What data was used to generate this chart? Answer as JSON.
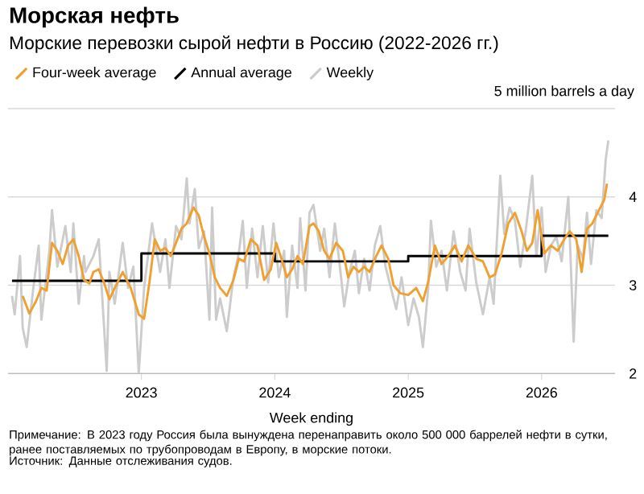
{
  "chart_data": {
    "type": "line",
    "title": "Морская нефть",
    "subtitle": "Морские перевозки сырой нефти в Россию (2022-2026 гг.)",
    "xlabel": "Week ending",
    "xlim": [
      2022.0,
      2026.55
    ],
    "xticks": [
      2023,
      2024,
      2025,
      2026
    ],
    "ylim": [
      2,
      5
    ],
    "yticks": [
      2,
      3,
      4,
      {
        "value": 5,
        "label": "5 million barrels a day"
      }
    ],
    "grid": "y",
    "legend": "top left",
    "series": [
      {
        "name": "Four-week average",
        "type": "line",
        "color": "#f0a030",
        "x": [
          2022.11,
          2022.16,
          2022.21,
          2022.25,
          2022.29,
          2022.33,
          2022.37,
          2022.41,
          2022.45,
          2022.49,
          2022.53,
          2022.57,
          2022.61,
          2022.64,
          2022.68,
          2022.72,
          2022.76,
          2022.8,
          2022.86,
          2022.92,
          2022.98,
          2023.02,
          2023.06,
          2023.1,
          2023.14,
          2023.18,
          2023.22,
          2023.26,
          2023.3,
          2023.34,
          2023.39,
          2023.43,
          2023.47,
          2023.51,
          2023.55,
          2023.59,
          2023.64,
          2023.69,
          2023.73,
          2023.77,
          2023.82,
          2023.87,
          2023.92,
          2023.97,
          2024.01,
          2024.05,
          2024.09,
          2024.13,
          2024.17,
          2024.21,
          2024.26,
          2024.29,
          2024.33,
          2024.37,
          2024.41,
          2024.46,
          2024.51,
          2024.55,
          2024.59,
          2024.63,
          2024.67,
          2024.71,
          2024.76,
          2024.8,
          2024.85,
          2024.89,
          2024.94,
          2025.0,
          2025.06,
          2025.11,
          2025.15,
          2025.2,
          2025.25,
          2025.3,
          2025.35,
          2025.4,
          2025.45,
          2025.51,
          2025.56,
          2025.61,
          2025.65,
          2025.7,
          2025.75,
          2025.8,
          2025.85,
          2025.89,
          2025.93,
          2025.97,
          2026.02,
          2026.07,
          2026.12,
          2026.17,
          2026.21,
          2026.26,
          2026.3,
          2026.34,
          2026.38,
          2026.43,
          2026.47,
          2026.49
        ],
        "values": [
          2.88,
          2.68,
          2.82,
          2.97,
          2.94,
          3.48,
          3.39,
          3.24,
          3.45,
          3.52,
          3.33,
          3.06,
          3.02,
          3.15,
          3.18,
          3.03,
          2.84,
          2.97,
          3.15,
          2.97,
          2.67,
          2.62,
          3.03,
          3.52,
          3.39,
          3.42,
          3.33,
          3.48,
          3.64,
          3.7,
          3.88,
          3.79,
          3.55,
          3.36,
          3.09,
          2.97,
          2.88,
          3.06,
          3.3,
          3.27,
          3.52,
          3.45,
          3.06,
          3.18,
          3.48,
          3.3,
          3.09,
          3.18,
          3.33,
          3.24,
          3.67,
          3.7,
          3.61,
          3.39,
          3.3,
          3.48,
          3.39,
          3.09,
          3.21,
          3.15,
          3.21,
          3.15,
          3.33,
          3.45,
          3.3,
          3.0,
          2.91,
          2.89,
          2.97,
          2.82,
          3.04,
          3.45,
          3.24,
          3.33,
          3.45,
          3.27,
          3.45,
          3.3,
          3.27,
          3.09,
          3.12,
          3.36,
          3.7,
          3.82,
          3.61,
          3.39,
          3.48,
          3.85,
          3.36,
          3.45,
          3.39,
          3.52,
          3.61,
          3.52,
          3.15,
          3.64,
          3.7,
          3.85,
          3.97,
          4.15
        ]
      },
      {
        "name": "Annual average",
        "type": "step",
        "color": "#000000",
        "x": [
          2022.03,
          2023.0,
          2024.0,
          2025.0,
          2026.0,
          2026.5
        ],
        "values": [
          3.05,
          3.36,
          3.27,
          3.33,
          3.56,
          3.56
        ]
      },
      {
        "name": "Weekly",
        "type": "line",
        "color": "#cccccc",
        "x": [
          2022.03,
          2022.05,
          2022.09,
          2022.11,
          2022.14,
          2022.19,
          2022.23,
          2022.25,
          2022.31,
          2022.33,
          2022.37,
          2022.43,
          2022.47,
          2022.49,
          2022.53,
          2022.57,
          2022.58,
          2022.64,
          2022.68,
          2022.74,
          2022.76,
          2022.8,
          2022.86,
          2022.9,
          2022.94,
          2022.98,
          2023.02,
          2023.08,
          2023.14,
          2023.18,
          2023.21,
          2023.26,
          2023.3,
          2023.34,
          2023.36,
          2023.4,
          2023.43,
          2023.47,
          2023.51,
          2023.53,
          2023.56,
          2023.59,
          2023.64,
          2023.69,
          2023.73,
          2023.76,
          2023.79,
          2023.83,
          2023.87,
          2023.91,
          2023.95,
          2023.99,
          2024.03,
          2024.07,
          2024.09,
          2024.13,
          2024.17,
          2024.19,
          2024.23,
          2024.26,
          2024.29,
          2024.34,
          2024.37,
          2024.41,
          2024.45,
          2024.49,
          2024.52,
          2024.56,
          2024.6,
          2024.63,
          2024.67,
          2024.71,
          2024.75,
          2024.79,
          2024.83,
          2024.87,
          2024.91,
          2024.95,
          2025.0,
          2025.04,
          2025.08,
          2025.11,
          2025.15,
          2025.17,
          2025.21,
          2025.25,
          2025.29,
          2025.34,
          2025.39,
          2025.43,
          2025.46,
          2025.51,
          2025.56,
          2025.61,
          2025.64,
          2025.69,
          2025.72,
          2025.76,
          2025.8,
          2025.84,
          2025.88,
          2025.93,
          2025.96,
          2026.0,
          2026.03,
          2026.07,
          2026.11,
          2026.15,
          2026.2,
          2026.24,
          2026.27,
          2026.31,
          2026.34,
          2026.37,
          2026.41,
          2026.45,
          2026.48,
          2026.5
        ],
        "values": [
          2.88,
          2.67,
          3.33,
          2.52,
          2.3,
          2.97,
          3.45,
          2.61,
          3.39,
          3.85,
          3.21,
          3.67,
          3.15,
          3.7,
          2.79,
          3.33,
          3.15,
          3.33,
          3.52,
          2.03,
          3.15,
          2.79,
          3.48,
          2.97,
          3.21,
          2.0,
          2.97,
          3.7,
          3.15,
          3.52,
          2.97,
          3.67,
          3.52,
          4.21,
          3.7,
          4.09,
          3.42,
          3.61,
          2.61,
          3.88,
          2.61,
          2.85,
          2.48,
          3.09,
          3.36,
          3.73,
          2.97,
          3.64,
          3.09,
          3.67,
          3.03,
          3.7,
          3.09,
          3.39,
          2.64,
          3.45,
          2.97,
          3.76,
          2.94,
          3.82,
          3.91,
          3.39,
          3.64,
          3.09,
          3.7,
          3.18,
          2.76,
          3.15,
          3.39,
          2.91,
          3.3,
          2.94,
          3.45,
          3.67,
          3.21,
          2.97,
          2.73,
          3.09,
          2.55,
          2.85,
          2.64,
          2.3,
          2.97,
          3.73,
          3.21,
          3.39,
          2.94,
          3.61,
          3.15,
          2.94,
          3.64,
          3.03,
          2.67,
          3.09,
          2.79,
          4.24,
          3.58,
          3.88,
          3.73,
          3.21,
          3.61,
          4.24,
          3.33,
          3.88,
          3.15,
          3.45,
          3.55,
          3.27,
          4.0,
          2.36,
          3.45,
          3.3,
          3.82,
          3.24,
          3.85,
          3.76,
          4.42,
          4.64
        ]
      }
    ],
    "annotations": [
      "Примечание: В 2023 году Россия была вынуждена перенаправить около 500 000 баррелей нефти в сутки, ранее поставляемых по трубопроводам в Европу, в морские потоки.",
      "Источник: Данные отслеживания судов."
    ]
  }
}
